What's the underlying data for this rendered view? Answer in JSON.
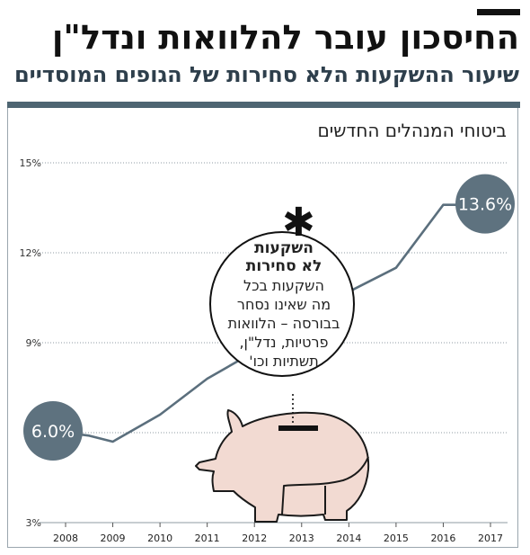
{
  "headline": "החיסכון עובר להלוואות ונדל\"ן",
  "subhead": "שיעור ההשקעות הלא סחירות של הגופים המוסדיים",
  "chart_title": "ביטוחי המנהלים החדשים",
  "note": {
    "title_line1": "השקעות",
    "title_line2": "לא סחירות",
    "body": [
      "השקעות בכל",
      "מה שאינו נסחר",
      "בבורסה – הלוואות",
      "פרטיות, נדל\"ן,",
      "תשתיות וכו'"
    ]
  },
  "colors": {
    "line": "#5b6f7d",
    "bubble": "#5e727f",
    "pig_fill": "#f2dad2",
    "pig_stroke": "#1a1a1a",
    "rule": "#4e6572"
  },
  "icon": "piggy-bank-icon",
  "chart_data": {
    "type": "line",
    "title": "ביטוחי המנהלים החדשים",
    "x": [
      2008,
      2008.5,
      2009,
      2010,
      2011,
      2012,
      2013,
      2014,
      2015,
      2016,
      2017
    ],
    "y": [
      6.0,
      5.9,
      5.7,
      6.6,
      7.8,
      8.7,
      9.7,
      10.7,
      11.5,
      13.6,
      13.6
    ],
    "ylim": [
      3,
      15
    ],
    "yticks": [
      3,
      6,
      9,
      12,
      15
    ],
    "ytick_labels": [
      "3%",
      "",
      "9%",
      "12%",
      "15%"
    ],
    "xticks": [
      2008,
      2009,
      2010,
      2011,
      2012,
      2013,
      2014,
      2015,
      2016,
      2017
    ],
    "start_label": "6.0%",
    "end_label": "13.6%",
    "grid": true,
    "legend": "none"
  }
}
